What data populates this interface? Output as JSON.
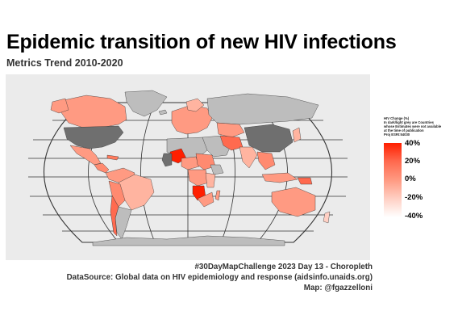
{
  "title": "Epidemic transition of new HIV infections",
  "subtitle": "Metrics Trend 2010-2020",
  "legend": {
    "title_lines": [
      "HIV Change (%)",
      "In dark/light grey are Countries",
      "whose Estimates were not available",
      "at the time of publication",
      "Proj ESRI:54030"
    ],
    "ticks": [
      "40%",
      "20%",
      "0%",
      "-20%",
      "-40%"
    ],
    "scale_min": -40,
    "scale_max": 40,
    "colors": {
      "high": "#ff1f00",
      "mid": "#ff9a82",
      "low": "#ffffff",
      "na_dark": "#6f6f6f",
      "na_light": "#bdbdbd"
    }
  },
  "caption": {
    "line1": "#30DayMapChallenge 2023 Day 13 - Choropleth",
    "line2": "DataSource: Global data on HIV epidemiology and response (aidsinfo.unaids.org)",
    "line3": "Map: @fgazzelloni"
  }
}
